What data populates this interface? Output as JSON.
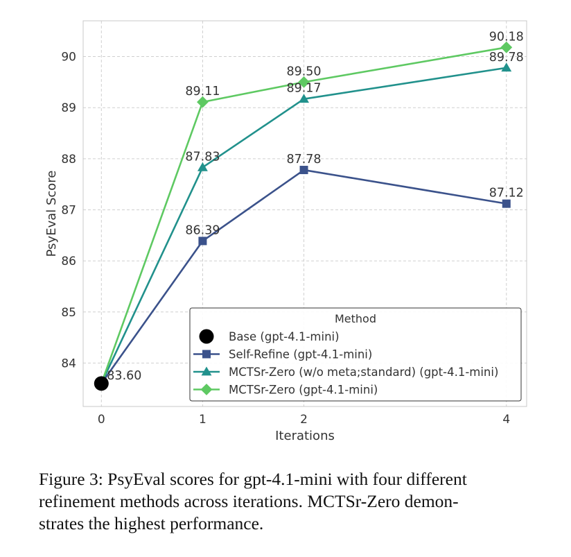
{
  "chart_data": {
    "type": "line",
    "xlabel": "Iterations",
    "ylabel": "PsyEval Score",
    "x_ticks": [
      0,
      1,
      2,
      4
    ],
    "y_ticks": [
      84,
      85,
      86,
      87,
      88,
      89,
      90
    ],
    "xlim": [
      -0.18,
      4.2
    ],
    "ylim": [
      83.15,
      90.7
    ],
    "grid": true,
    "legend": {
      "title": "Method",
      "position": "bottom-right"
    },
    "series": [
      {
        "name": "Base (gpt-4.1-mini)",
        "marker": "circle",
        "color": "#000000",
        "points": [
          {
            "x": 0,
            "y": 83.6,
            "label": "83.60"
          }
        ]
      },
      {
        "name": "Self-Refine (gpt-4.1-mini)",
        "marker": "square",
        "color": "#3b528b",
        "points": [
          {
            "x": 0,
            "y": 83.6
          },
          {
            "x": 1,
            "y": 86.39,
            "label": "86.39"
          },
          {
            "x": 2,
            "y": 87.78,
            "label": "87.78"
          },
          {
            "x": 4,
            "y": 87.12,
            "label": "87.12"
          }
        ]
      },
      {
        "name": "MCTSr-Zero (w/o meta;standard) (gpt-4.1-mini)",
        "marker": "triangle",
        "color": "#21918c",
        "points": [
          {
            "x": 0,
            "y": 83.6
          },
          {
            "x": 1,
            "y": 87.83,
            "label": "87.83"
          },
          {
            "x": 2,
            "y": 89.17,
            "label": "89.17"
          },
          {
            "x": 4,
            "y": 89.78,
            "label": "89.78"
          }
        ]
      },
      {
        "name": "MCTSr-Zero (gpt-4.1-mini)",
        "marker": "diamond",
        "color": "#5ec962",
        "points": [
          {
            "x": 0,
            "y": 83.6
          },
          {
            "x": 1,
            "y": 89.11,
            "label": "89.11"
          },
          {
            "x": 2,
            "y": 89.5,
            "label": "89.50"
          },
          {
            "x": 4,
            "y": 90.18,
            "label": "90.18"
          }
        ]
      }
    ]
  },
  "caption": {
    "line1": "Figure 3: PsyEval scores for gpt-4.1-mini with four different",
    "line2": "refinement methods across iterations. MCTSr-Zero demon-",
    "line3": "strates the highest performance."
  }
}
